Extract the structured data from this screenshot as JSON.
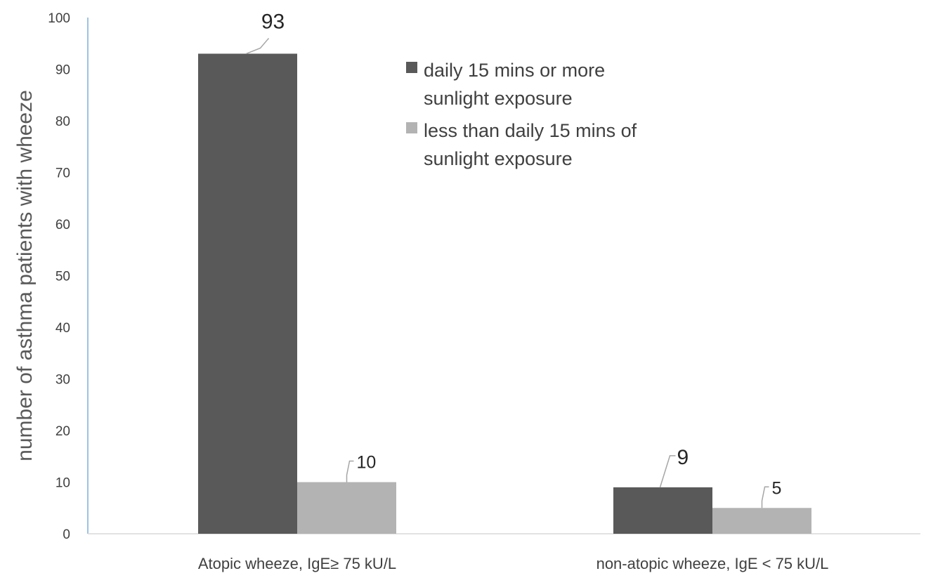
{
  "chart_data": {
    "type": "bar",
    "categories": [
      "Atopic wheeze, IgE≥ 75 kU/L",
      "non-atopic wheeze, IgE < 75 kU/L"
    ],
    "series": [
      {
        "name": "daily 15 mins or more sunlight exposure",
        "legend_lines": [
          "daily 15 mins or more",
          "sunlight exposure"
        ],
        "color": "#595959",
        "values": [
          93,
          9
        ]
      },
      {
        "name": "less than daily 15 mins of sunlight exposure",
        "legend_lines": [
          "less than daily 15 mins of",
          "sunlight exposure"
        ],
        "color": "#b3b3b3",
        "values": [
          10,
          5
        ]
      }
    ],
    "title": "",
    "xlabel": "",
    "ylabel": "number of asthma patients with wheeze",
    "ylim": [
      0,
      100
    ],
    "yticks": [
      0,
      10,
      20,
      30,
      40,
      50,
      60,
      70,
      80,
      90,
      100
    ],
    "data_labels": [
      "93",
      "10",
      "9",
      "5"
    ],
    "grid": false,
    "legend_position": "top-right",
    "axis_color": "#9dc3e6"
  }
}
